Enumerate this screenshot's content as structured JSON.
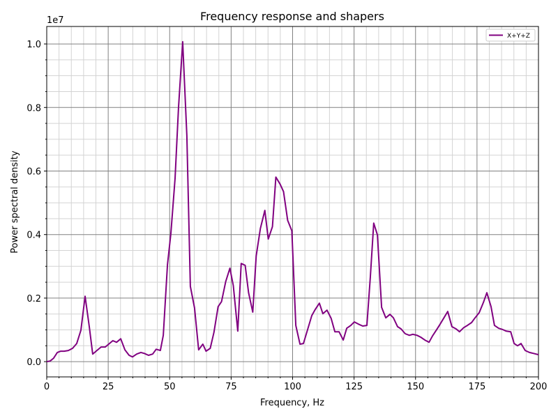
{
  "chart_data": {
    "type": "line",
    "title": "Frequency response and shapers",
    "x_label": "Frequency, Hz",
    "y_label": "Power spectral density",
    "y_offset_label": "1e7",
    "xlim": [
      0,
      200
    ],
    "ylim": [
      -0.048,
      1.055
    ],
    "xticks": [
      0,
      25,
      50,
      75,
      100,
      125,
      150,
      175,
      200
    ],
    "yticks": [
      {
        "value": 0,
        "label": "0.0"
      },
      0.2,
      0.4,
      0.6,
      0.8,
      {
        "value": 1,
        "label": "1.0"
      }
    ],
    "grid": true,
    "minor_grid": true,
    "legend_position": "upper right",
    "x": [
      0,
      1.4,
      2.8,
      4.3,
      5.7,
      7.1,
      8.8,
      10.5,
      12.2,
      13.9,
      15.6,
      17.3,
      18.7,
      20.4,
      22.1,
      23.8,
      25.2,
      26.9,
      28.4,
      30.1,
      31.8,
      33.5,
      34.9,
      36.6,
      38.3,
      39.7,
      41.4,
      43.1,
      44.5,
      46.2,
      47.4,
      49.1,
      50.5,
      52.2,
      53.6,
      55.3,
      57.0,
      58.4,
      60.1,
      61.8,
      63.5,
      64.8,
      66.5,
      68.0,
      69.7,
      71.1,
      72.8,
      74.5,
      75.9,
      77.7,
      79.1,
      80.7,
      82.1,
      83.8,
      85.2,
      86.9,
      88.7,
      90.1,
      91.8,
      93.2,
      94.9,
      96.3,
      98.0,
      99.7,
      101.3,
      103.0,
      104.4,
      106.1,
      107.8,
      109.2,
      110.9,
      112.3,
      114.0,
      115.7,
      117.2,
      118.9,
      120.6,
      122.0,
      123.7,
      125.1,
      126.8,
      128.5,
      130.2,
      131.6,
      133.0,
      134.5,
      136.2,
      137.9,
      139.6,
      141.0,
      142.7,
      144.1,
      145.8,
      147.5,
      148.9,
      150.6,
      152.1,
      153.8,
      155.5,
      156.9,
      158.6,
      160.0,
      161.7,
      163.1,
      164.8,
      166.5,
      167.9,
      169.6,
      171.1,
      172.8,
      174.2,
      175.9,
      177.6,
      179.0,
      180.7,
      182.1,
      183.8,
      185.5,
      186.9,
      188.7,
      190.1,
      191.5,
      192.9,
      194.6,
      196.3,
      198.0,
      200.0
    ],
    "series": [
      {
        "name": "X+Y+Z",
        "color": "#800080",
        "values": [
          0,
          0.002,
          0.011,
          0.029,
          0.033,
          0.033,
          0.035,
          0.042,
          0.057,
          0.099,
          0.206,
          0.11,
          0.024,
          0.035,
          0.046,
          0.046,
          0.055,
          0.066,
          0.061,
          0.072,
          0.037,
          0.02,
          0.015,
          0.024,
          0.029,
          0.026,
          0.02,
          0.024,
          0.039,
          0.035,
          0.083,
          0.305,
          0.404,
          0.577,
          0.798,
          1.007,
          0.711,
          0.237,
          0.169,
          0.037,
          0.055,
          0.033,
          0.042,
          0.092,
          0.173,
          0.189,
          0.252,
          0.294,
          0.239,
          0.096,
          0.309,
          0.303,
          0.217,
          0.156,
          0.333,
          0.419,
          0.476,
          0.386,
          0.425,
          0.581,
          0.559,
          0.535,
          0.445,
          0.412,
          0.114,
          0.055,
          0.057,
          0.101,
          0.145,
          0.164,
          0.184,
          0.151,
          0.162,
          0.136,
          0.094,
          0.094,
          0.068,
          0.105,
          0.114,
          0.125,
          0.118,
          0.112,
          0.114,
          0.265,
          0.436,
          0.399,
          0.171,
          0.138,
          0.149,
          0.138,
          0.11,
          0.103,
          0.088,
          0.083,
          0.086,
          0.083,
          0.077,
          0.068,
          0.061,
          0.081,
          0.101,
          0.118,
          0.14,
          0.158,
          0.11,
          0.103,
          0.094,
          0.107,
          0.114,
          0.123,
          0.138,
          0.154,
          0.186,
          0.217,
          0.173,
          0.114,
          0.105,
          0.101,
          0.096,
          0.094,
          0.057,
          0.05,
          0.057,
          0.035,
          0.029,
          0.026,
          0.022
        ]
      }
    ]
  }
}
